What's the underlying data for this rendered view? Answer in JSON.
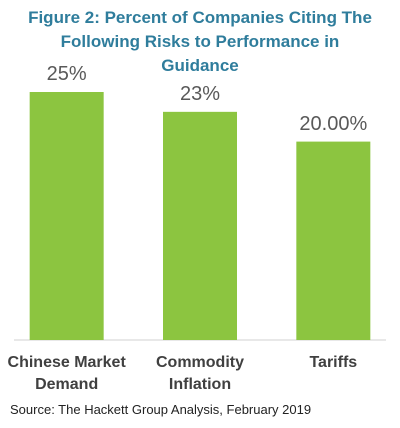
{
  "chart_data": {
    "type": "bar",
    "title": "Figure 2: Percent of Companies Citing The Following Risks to Performance in Guidance",
    "categories": [
      "Chinese Market Demand",
      "Commodity Inflation",
      "Tariffs"
    ],
    "values": [
      25,
      23,
      20
    ],
    "value_labels": [
      "25%",
      "23%",
      "20.00%"
    ],
    "color": "#8cc540",
    "source": "Source: The Hackett Group Analysis, February 2019"
  }
}
